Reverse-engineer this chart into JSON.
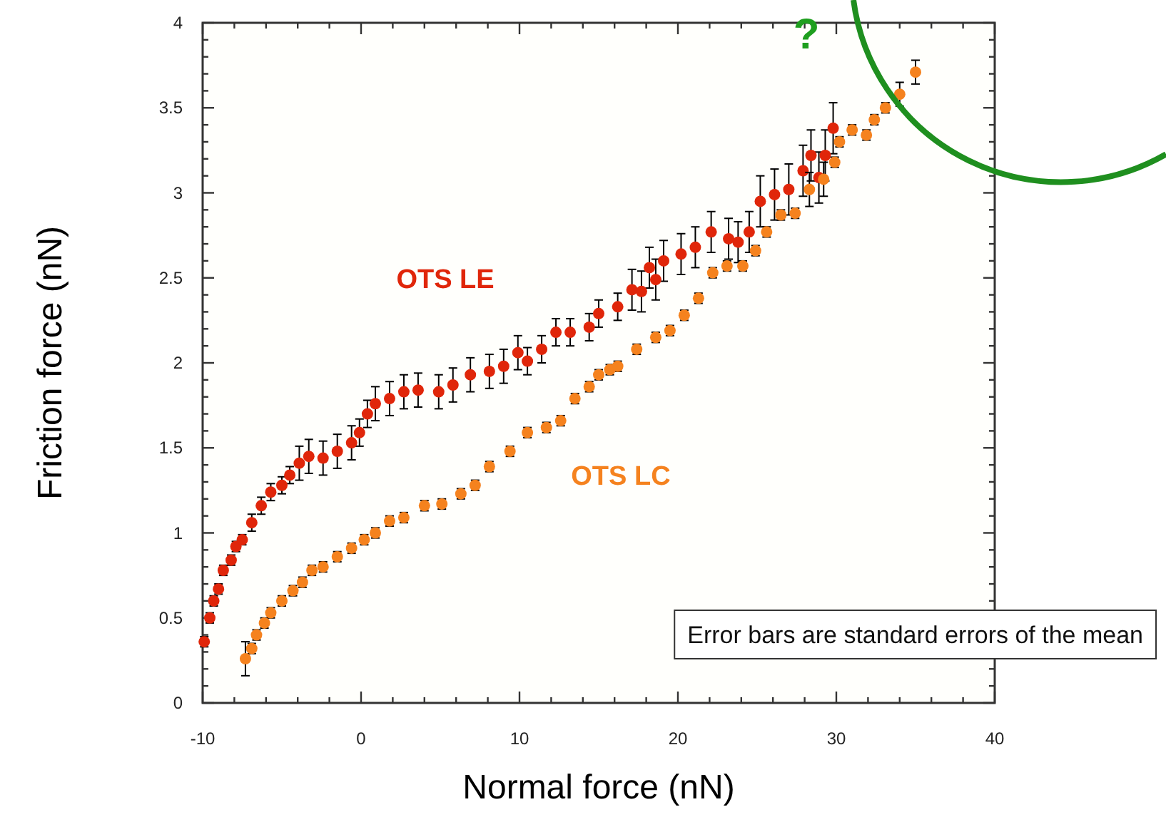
{
  "chart_data": {
    "type": "scatter",
    "xlabel": "Normal force (nN)",
    "ylabel": "Friction force (nN)",
    "marker": "circle",
    "grid": false,
    "xlim": [
      -10,
      40
    ],
    "ylim": [
      0,
      4
    ],
    "xticks": [
      -10,
      {
        "value": -8,
        "label": null
      },
      {
        "value": -6,
        "label": null
      },
      {
        "value": -4,
        "label": null
      },
      {
        "value": -2,
        "label": null
      },
      0,
      {
        "value": 2,
        "label": null
      },
      {
        "value": 4,
        "label": null
      },
      {
        "value": 6,
        "label": null
      },
      {
        "value": 8,
        "label": null
      },
      10,
      {
        "value": 12,
        "label": null
      },
      {
        "value": 14,
        "label": null
      },
      {
        "value": 16,
        "label": null
      },
      {
        "value": 18,
        "label": null
      },
      20,
      {
        "value": 22,
        "label": null
      },
      {
        "value": 24,
        "label": null
      },
      {
        "value": 26,
        "label": null
      },
      {
        "value": 28,
        "label": null
      },
      30,
      {
        "value": 32,
        "label": null
      },
      {
        "value": 34,
        "label": null
      },
      {
        "value": 36,
        "label": null
      },
      {
        "value": 38,
        "label": null
      },
      40
    ],
    "yticks": [
      0,
      {
        "value": 0.1,
        "label": null
      },
      {
        "value": 0.2,
        "label": null
      },
      {
        "value": 0.3,
        "label": null
      },
      {
        "value": 0.4,
        "label": null
      },
      0.5,
      {
        "value": 0.6,
        "label": null
      },
      {
        "value": 0.7,
        "label": null
      },
      {
        "value": 0.8,
        "label": null
      },
      {
        "value": 0.9,
        "label": null
      },
      1,
      {
        "value": 1.1,
        "label": null
      },
      {
        "value": 1.2,
        "label": null
      },
      {
        "value": 1.3,
        "label": null
      },
      {
        "value": 1.4,
        "label": null
      },
      1.5,
      {
        "value": 1.6,
        "label": null
      },
      {
        "value": 1.7,
        "label": null
      },
      {
        "value": 1.8,
        "label": null
      },
      {
        "value": 1.9,
        "label": null
      },
      2,
      {
        "value": 2.1,
        "label": null
      },
      {
        "value": 2.2,
        "label": null
      },
      {
        "value": 2.3,
        "label": null
      },
      {
        "value": 2.4,
        "label": null
      },
      2.5,
      {
        "value": 2.6,
        "label": null
      },
      {
        "value": 2.7,
        "label": null
      },
      {
        "value": 2.8,
        "label": null
      },
      {
        "value": 2.9,
        "label": null
      },
      3,
      {
        "value": 3.1,
        "label": null
      },
      {
        "value": 3.2,
        "label": null
      },
      {
        "value": 3.3,
        "label": null
      },
      {
        "value": 3.4,
        "label": null
      },
      3.5,
      {
        "value": 3.6,
        "label": null
      },
      {
        "value": 3.7,
        "label": null
      },
      {
        "value": 3.8,
        "label": null
      },
      {
        "value": 3.9,
        "label": null
      },
      4
    ],
    "series": [
      {
        "name": "OTS LE",
        "color": "#e0260a",
        "x": [
          -9.9,
          -9.55,
          -9.3,
          -9.0,
          -8.7,
          -8.2,
          -7.9,
          -7.5,
          -6.9,
          -6.3,
          -5.7,
          -5.0,
          -4.5,
          -3.9,
          -3.3,
          -2.4,
          -1.5,
          -0.6,
          -0.1,
          0.4,
          0.9,
          1.8,
          2.7,
          3.6,
          4.9,
          5.8,
          6.9,
          8.1,
          9.0,
          9.9,
          10.5,
          11.4,
          12.3,
          13.2,
          14.4,
          15.0,
          16.2,
          17.1,
          17.7,
          18.2,
          18.6,
          19.1,
          20.2,
          21.1,
          22.1,
          23.2,
          23.8,
          24.5,
          25.2,
          26.1,
          27.0,
          27.9,
          28.4,
          28.9,
          29.3,
          29.8
        ],
        "values": [
          0.36,
          0.5,
          0.6,
          0.67,
          0.78,
          0.84,
          0.92,
          0.96,
          1.06,
          1.16,
          1.24,
          1.28,
          1.34,
          1.41,
          1.45,
          1.44,
          1.48,
          1.53,
          1.59,
          1.7,
          1.76,
          1.79,
          1.83,
          1.84,
          1.83,
          1.87,
          1.93,
          1.95,
          1.98,
          2.06,
          2.01,
          2.08,
          2.18,
          2.18,
          2.21,
          2.29,
          2.33,
          2.43,
          2.42,
          2.56,
          2.49,
          2.6,
          2.64,
          2.68,
          2.77,
          2.73,
          2.71,
          2.77,
          2.95,
          2.99,
          3.02,
          3.13,
          3.22,
          3.09,
          3.22,
          3.38
        ],
        "errors": [
          0.03,
          0.03,
          0.03,
          0.03,
          0.03,
          0.03,
          0.03,
          0.03,
          0.05,
          0.05,
          0.05,
          0.05,
          0.05,
          0.1,
          0.1,
          0.1,
          0.1,
          0.1,
          0.08,
          0.08,
          0.1,
          0.1,
          0.1,
          0.1,
          0.1,
          0.1,
          0.1,
          0.1,
          0.1,
          0.1,
          0.08,
          0.08,
          0.08,
          0.08,
          0.08,
          0.08,
          0.08,
          0.12,
          0.12,
          0.12,
          0.12,
          0.12,
          0.12,
          0.12,
          0.12,
          0.12,
          0.12,
          0.12,
          0.15,
          0.15,
          0.15,
          0.15,
          0.15,
          0.15,
          0.15,
          0.15
        ]
      },
      {
        "name": "OTS LC",
        "color": "#f5821e",
        "x": [
          -7.3,
          -6.9,
          -6.6,
          -6.1,
          -5.7,
          -5.0,
          -4.3,
          -3.7,
          -3.1,
          -2.4,
          -1.5,
          -0.6,
          0.2,
          0.9,
          1.8,
          2.7,
          4.0,
          5.1,
          6.3,
          7.2,
          8.1,
          9.4,
          10.5,
          11.7,
          12.6,
          13.5,
          14.4,
          15.0,
          15.7,
          16.2,
          17.4,
          18.6,
          19.5,
          20.4,
          21.3,
          22.2,
          23.1,
          24.1,
          24.9,
          25.6,
          26.5,
          27.4,
          28.3,
          29.2,
          29.9,
          30.2,
          31.0,
          31.9,
          32.4,
          33.1,
          34.0,
          35.0
        ],
        "values": [
          0.26,
          0.32,
          0.4,
          0.47,
          0.53,
          0.6,
          0.66,
          0.71,
          0.78,
          0.8,
          0.86,
          0.91,
          0.96,
          1.0,
          1.07,
          1.09,
          1.16,
          1.17,
          1.23,
          1.28,
          1.39,
          1.48,
          1.59,
          1.62,
          1.66,
          1.79,
          1.86,
          1.93,
          1.96,
          1.98,
          2.08,
          2.15,
          2.19,
          2.28,
          2.38,
          2.53,
          2.57,
          2.57,
          2.66,
          2.77,
          2.87,
          2.88,
          3.02,
          3.08,
          3.18,
          3.3,
          3.37,
          3.34,
          3.43,
          3.5,
          3.58,
          3.71
        ],
        "errors": [
          0.1,
          0.03,
          0.03,
          0.03,
          0.03,
          0.03,
          0.03,
          0.03,
          0.03,
          0.03,
          0.03,
          0.03,
          0.03,
          0.03,
          0.03,
          0.03,
          0.03,
          0.03,
          0.03,
          0.03,
          0.03,
          0.03,
          0.03,
          0.03,
          0.03,
          0.03,
          0.03,
          0.03,
          0.03,
          0.03,
          0.03,
          0.03,
          0.03,
          0.03,
          0.03,
          0.03,
          0.03,
          0.03,
          0.03,
          0.03,
          0.03,
          0.03,
          0.1,
          0.1,
          0.03,
          0.03,
          0.03,
          0.03,
          0.03,
          0.03,
          0.07,
          0.07
        ]
      }
    ],
    "annotations": [
      "?",
      "Error bars are standard errors of the mean"
    ]
  }
}
